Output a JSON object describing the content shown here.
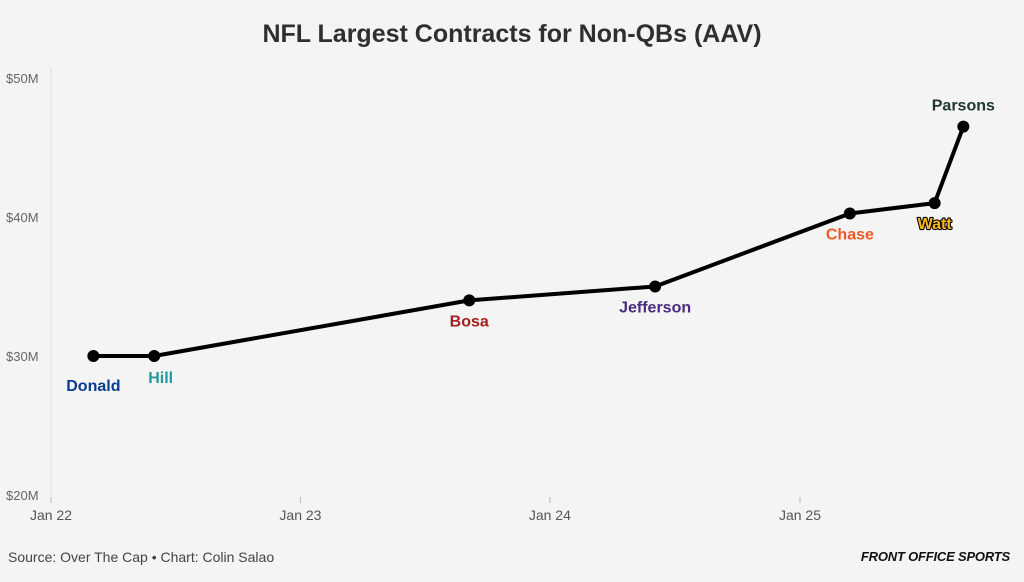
{
  "title": "NFL Largest Contracts for Non-QBs (AAV)",
  "footer": {
    "source": "Source: Over The Cap • Chart: Colin Salao",
    "brand": "FRONT OFFICE SPORTS"
  },
  "chart_data": {
    "type": "line",
    "title": "NFL Largest Contracts for Non-QBs (AAV)",
    "xlabel": "",
    "ylabel": "",
    "x_ticks": [
      {
        "label": "Jan 22",
        "date": "2022-01-01"
      },
      {
        "label": "Jan 23",
        "date": "2023-01-01"
      },
      {
        "label": "Jan 24",
        "date": "2024-01-01"
      },
      {
        "label": "Jan 25",
        "date": "2025-01-01"
      }
    ],
    "y_ticks": [
      {
        "label": "$20M",
        "value": 20
      },
      {
        "label": "$30M",
        "value": 30
      },
      {
        "label": "$40M",
        "value": 40
      },
      {
        "label": "$50M",
        "value": 50
      }
    ],
    "ylim": [
      20,
      50
    ],
    "xlim": [
      "2022-01-01",
      "2025-09-30"
    ],
    "y_unit": "$M",
    "grid": false,
    "line_color": "#000000",
    "points": [
      {
        "label": "Donald",
        "date": "2022-03-04",
        "value": 30.0,
        "color": "#083c8f",
        "label_pos": "below-left"
      },
      {
        "label": "Hill",
        "date": "2022-06-01",
        "value": 30.0,
        "color": "#20999c",
        "label_pos": "below-right"
      },
      {
        "label": "Bosa",
        "date": "2023-09-05",
        "value": 34.0,
        "color": "#a61e1e",
        "label_pos": "below"
      },
      {
        "label": "Jefferson",
        "date": "2024-06-03",
        "value": 35.0,
        "color": "#4b2b7f",
        "label_pos": "below"
      },
      {
        "label": "Chase",
        "date": "2025-03-15",
        "value": 40.25,
        "color": "#ef5a24",
        "label_pos": "below"
      },
      {
        "label": "Watt",
        "date": "2025-07-17",
        "value": 41.0,
        "color": "#ffb81c",
        "label_pos": "below",
        "outline": true
      },
      {
        "label": "Parsons",
        "date": "2025-08-28",
        "value": 46.5,
        "color": "#203731",
        "label_pos": "above"
      }
    ]
  }
}
